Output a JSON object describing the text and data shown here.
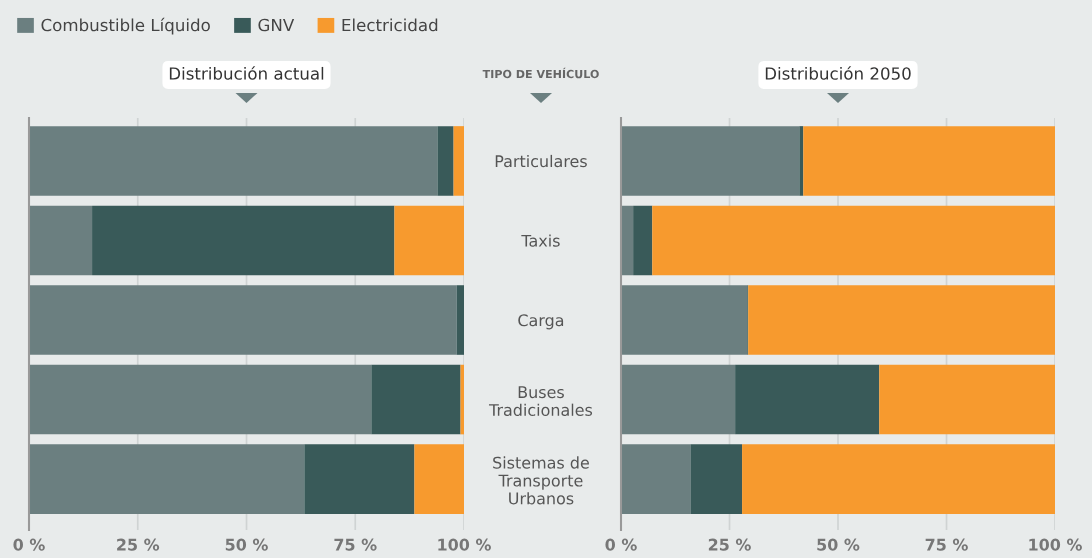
{
  "chart_data": [
    {
      "type": "bar",
      "orientation": "horizontal",
      "stacked": true,
      "title": "Distribución actual",
      "ylabel": "TIPO DE VEHÍCULO",
      "categories": [
        "Particulares",
        "Taxis",
        "Carga",
        "Buses\nTradicionales",
        "Sistemas de\nTransporte\nUrbanos"
      ],
      "series": [
        {
          "name": "Combustible Líquido",
          "color": "#6b7f80",
          "values": [
            93.9,
            14.5,
            98.3,
            78.7,
            63.3
          ]
        },
        {
          "name": "GNV",
          "color": "#395a59",
          "values": [
            3.7,
            69.5,
            1.7,
            20.5,
            25.3
          ]
        },
        {
          "name": "Electricidad",
          "color": "#f79a2e",
          "values": [
            2.4,
            16.0,
            0,
            0.8,
            11.4
          ]
        }
      ],
      "xlim": [
        0,
        100
      ],
      "xticks": [
        {
          "value": 0,
          "label": "0 %"
        },
        {
          "value": 25,
          "label": "25 %"
        },
        {
          "value": 50,
          "label": "50 %"
        },
        {
          "value": 75,
          "label": "75 %"
        },
        {
          "value": 100,
          "label": "100 %"
        }
      ],
      "grid": "x",
      "legend": "top"
    },
    {
      "type": "bar",
      "orientation": "horizontal",
      "stacked": true,
      "title": "Distribución 2050",
      "categories": [
        null,
        null,
        null,
        null,
        null
      ],
      "series": [
        {
          "color": "#6b7f80",
          "values": [
            41.1,
            2.8,
            29.1,
            26.3,
            16.0
          ]
        },
        {
          "color": "#395a59",
          "values": [
            0.9,
            4.4,
            0.2,
            33.2,
            11.9
          ]
        },
        {
          "color": "#f79a2e",
          "values": [
            58.0,
            92.8,
            70.7,
            40.5,
            72.1
          ]
        }
      ],
      "xlim": [
        0,
        100
      ],
      "xticks": [
        {
          "value": 0,
          "label": "0 %"
        },
        {
          "value": 25,
          "label": "25 %"
        },
        {
          "value": 50,
          "label": "50 %"
        },
        {
          "value": 75,
          "label": "75 %"
        },
        {
          "value": 100,
          "label": "100 %"
        }
      ],
      "grid": "x",
      "tick_labels": "x"
    }
  ]
}
